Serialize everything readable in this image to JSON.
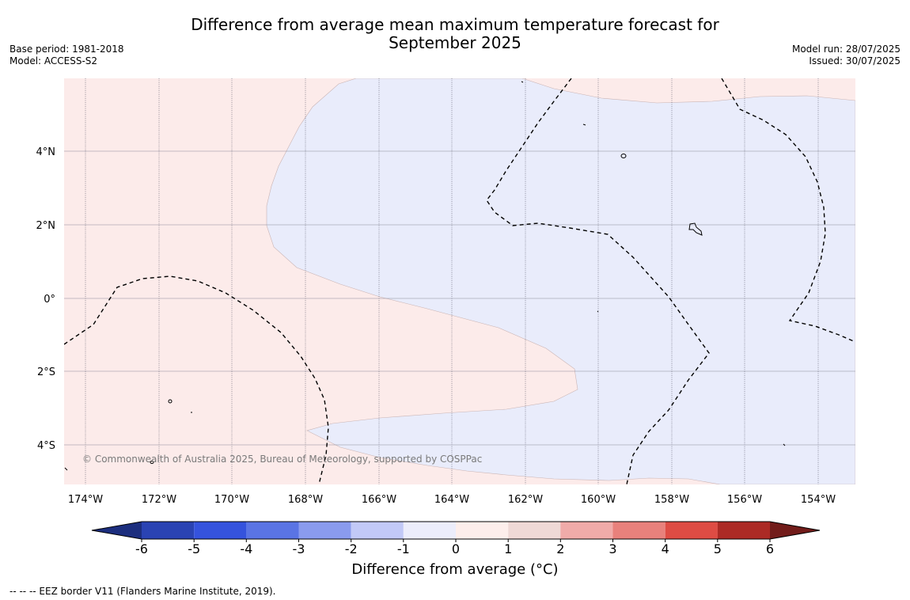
{
  "title": {
    "line1": "Difference from average mean maximum temperature forecast for",
    "line2": "September 2025"
  },
  "left_info": {
    "base_period": "Base period: 1981-2018",
    "model": "Model: ACCESS-S2"
  },
  "right_info": {
    "model_run": "Model run: 28/07/2025",
    "issued": "Issued: 30/07/2025"
  },
  "map": {
    "lon_labels": [
      "174°W",
      "172°W",
      "170°W",
      "168°W",
      "166°W",
      "164°W",
      "162°W",
      "160°W",
      "158°W",
      "156°W",
      "154°W"
    ],
    "lat_labels": [
      "4°N",
      "2°N",
      "0°",
      "2°S",
      "4°S"
    ],
    "copyright": "© Commonwealth of Australia 2025, Bureau of Meteorology, supported by COSPPac",
    "colors": {
      "warm_0_1": "#fcebea",
      "cool_-1_0": "#e9ecfb",
      "grid": "#8a8a99",
      "coast": "#000000"
    }
  },
  "colorbar": {
    "ticks": [
      "-6",
      "-5",
      "-4",
      "-3",
      "-2",
      "-1",
      "0",
      "1",
      "2",
      "3",
      "4",
      "5",
      "6"
    ],
    "label": "Difference from average (°C)",
    "colors": [
      "#1c2e7e",
      "#2a43b3",
      "#3553dd",
      "#5a74e4",
      "#8a9bee",
      "#c2c9f7",
      "#ecedfb",
      "#fdeeeb",
      "#efd9d6",
      "#f0aba9",
      "#e8817c",
      "#de4c44",
      "#ac2a25",
      "#721c1a"
    ]
  },
  "footer": {
    "legend": "--  --  -- EEZ border V11 (Flanders Marine Institute, 2019)."
  }
}
